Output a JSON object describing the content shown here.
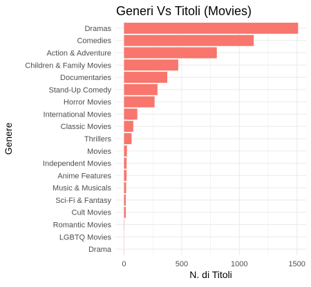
{
  "chart_data": {
    "type": "bar",
    "orientation": "horizontal",
    "title": "Generi Vs Titoli (Movies)",
    "xlabel": "N. di Titoli",
    "ylabel": "Genere",
    "categories": [
      "Dramas",
      "Comedies",
      "Action & Adventure",
      "Children & Family Movies",
      "Documentaries",
      "Stand-Up Comedy",
      "Horror Movies",
      "International Movies",
      "Classic Movies",
      "Thrillers",
      "Movies",
      "Independent Movies",
      "Anime Features",
      "Music & Musicals",
      "Sci-Fi & Fantasy",
      "Cult Movies",
      "Romantic Movies",
      "LGBTQ Movies",
      "Drama"
    ],
    "values": [
      1510,
      1125,
      805,
      470,
      375,
      290,
      265,
      115,
      80,
      65,
      25,
      22,
      22,
      18,
      15,
      15,
      2,
      1,
      1
    ],
    "xlim": [
      -75,
      1580
    ],
    "xticks": [
      0,
      500,
      1000,
      1500
    ],
    "xtick_labels": [
      "0",
      "500",
      "1000",
      "1500"
    ],
    "grid": true,
    "legend": "none",
    "bar_color": "#f8766d",
    "grid_color": "#ebebeb"
  }
}
